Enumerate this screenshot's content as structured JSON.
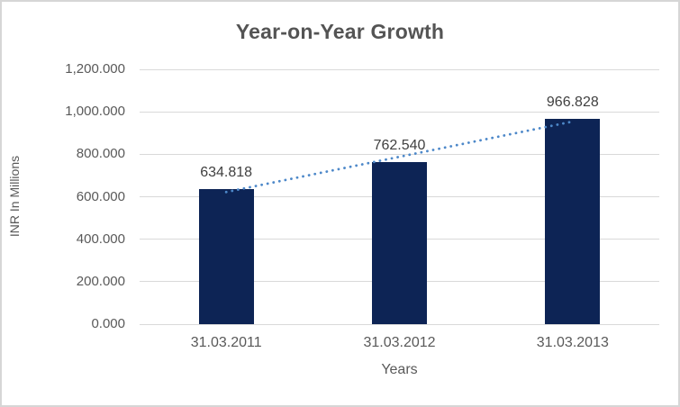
{
  "chart_data": {
    "type": "bar",
    "title": "Year-on-Year Growth",
    "xlabel": "Years",
    "ylabel": "INR In Millions",
    "categories": [
      "31.03.2011",
      "31.03.2012",
      "31.03.2013"
    ],
    "values": [
      634.818,
      762.54,
      966.828
    ],
    "data_labels": [
      "634.818",
      "762.540",
      "966.828"
    ],
    "ylim": [
      0,
      1200
    ],
    "ytick_step": 200,
    "ytick_labels": [
      "0.000",
      "200.000",
      "400.000",
      "600.000",
      "800.000",
      "1,000.000",
      "1,200.000"
    ],
    "grid": true,
    "legend": "none",
    "trendline": {
      "type": "linear",
      "style": "dotted",
      "fit_values": [
        622.057,
        788.062,
        954.067
      ]
    },
    "colors": {
      "bar": "#0d2455",
      "trendline": "#4d88c9",
      "gridline": "#d9d9d9",
      "title_text": "#545454",
      "axis_text": "#595959",
      "data_label_text": "#404040",
      "frame_border": "#d6d6d6",
      "background": "#ffffff"
    }
  }
}
